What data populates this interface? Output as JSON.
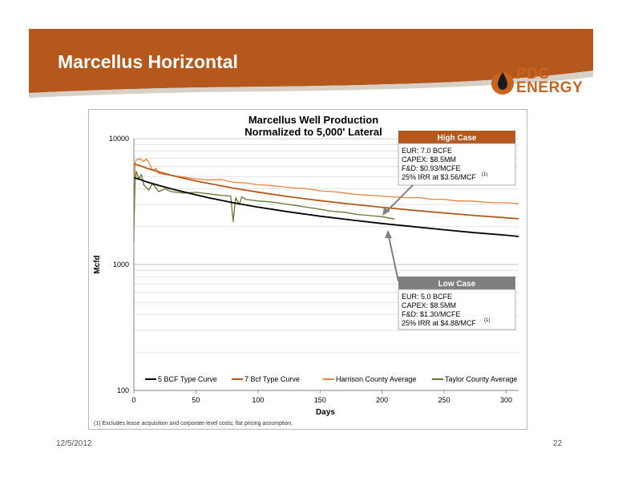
{
  "slide": {
    "title": "Marcellus Horizontal",
    "date": "12/5/2012",
    "page_number": "22",
    "logo_text_top": "PDC",
    "logo_text_bottom": "ENERGY",
    "colors": {
      "banner": "#b5581d",
      "logo": "#c8641e"
    }
  },
  "callouts": {
    "high": {
      "header": "High Case",
      "header_color": "#b5581d",
      "lines": [
        "EUR: 7.0 BCFE",
        "CAPEX: $8.5MM",
        "F&D: $0.93/MCFE",
        "25% IRR at $3.56/MCF"
      ],
      "superscript": "(1)"
    },
    "low": {
      "header": "Low Case",
      "header_color": "#7f7f7f",
      "lines": [
        "EUR: 5.0 BCFE",
        "CAPEX: $8.5MM",
        "F&D: $1.30/MCFE",
        "25% IRR at $4.88/MCF"
      ],
      "superscript": "(1)"
    }
  },
  "chart_data": {
    "type": "line",
    "title": "Marcellus Well Production",
    "subtitle": "Normalized to 5,000' Lateral",
    "xlabel": "Days",
    "ylabel": "Mcfd",
    "xlim": [
      0,
      310
    ],
    "ylim": [
      100,
      10000
    ],
    "y_scale": "log",
    "x_ticks": [
      0,
      50,
      100,
      150,
      200,
      250,
      300
    ],
    "y_ticks": [
      100,
      1000,
      10000
    ],
    "grid": "horizontal",
    "legend_position": "bottom",
    "footnote": "(1) Excludes lease acquisition and corporate-level costs; flat pricing assumption.",
    "series": [
      {
        "name": "5 BCF Type Curve",
        "color": "#000000",
        "x": [
          0,
          5,
          10,
          20,
          30,
          40,
          50,
          60,
          80,
          100,
          125,
          150,
          175,
          200,
          225,
          250,
          275,
          300,
          310
        ],
        "y": [
          4900,
          4750,
          4550,
          4250,
          4000,
          3780,
          3580,
          3400,
          3100,
          2860,
          2620,
          2420,
          2260,
          2120,
          2000,
          1890,
          1790,
          1710,
          1670
        ]
      },
      {
        "name": "7 Bcf Type Curve",
        "color": "#b5581d",
        "x": [
          0,
          5,
          10,
          20,
          30,
          40,
          50,
          60,
          80,
          100,
          125,
          150,
          175,
          200,
          225,
          250,
          275,
          300,
          310
        ],
        "y": [
          6300,
          6100,
          5850,
          5450,
          5130,
          4860,
          4620,
          4410,
          4050,
          3760,
          3460,
          3220,
          3020,
          2850,
          2700,
          2570,
          2450,
          2350,
          2310
        ]
      },
      {
        "name": "Harrison County Average",
        "color": "#e8853a",
        "x": [
          0,
          1,
          2,
          5,
          8,
          10,
          12,
          15,
          18,
          20,
          25,
          30,
          40,
          50,
          60,
          70,
          80,
          90,
          100,
          110,
          120,
          130,
          140,
          150,
          160,
          170,
          180,
          190,
          200,
          210,
          220,
          230,
          240,
          250,
          260,
          270,
          280,
          290,
          300,
          310
        ],
        "y": [
          1500,
          6400,
          6800,
          6900,
          6600,
          6900,
          6500,
          5600,
          5800,
          5300,
          5200,
          5100,
          4950,
          4800,
          4700,
          4750,
          4500,
          4450,
          4300,
          4250,
          4150,
          4050,
          4000,
          3850,
          3800,
          3700,
          3600,
          3550,
          3500,
          3450,
          3400,
          3400,
          3300,
          3300,
          3200,
          3200,
          3150,
          3100,
          3100,
          3050
        ]
      },
      {
        "name": "Taylor County Average",
        "color": "#5e7a32",
        "x": [
          0,
          1,
          2,
          4,
          6,
          8,
          10,
          12,
          15,
          20,
          25,
          30,
          40,
          50,
          60,
          70,
          78,
          80,
          82,
          85,
          87,
          90,
          100,
          110,
          120,
          130,
          140,
          150,
          160,
          170,
          180,
          190,
          200,
          210
        ],
        "y": [
          2000,
          4500,
          5500,
          4800,
          5200,
          4300,
          4100,
          3900,
          4400,
          3800,
          4000,
          3800,
          3700,
          3750,
          3650,
          3550,
          3500,
          2200,
          3400,
          3000,
          3450,
          3300,
          3200,
          3150,
          3050,
          2950,
          2850,
          2750,
          2650,
          2600,
          2500,
          2450,
          2400,
          2300
        ]
      }
    ]
  }
}
